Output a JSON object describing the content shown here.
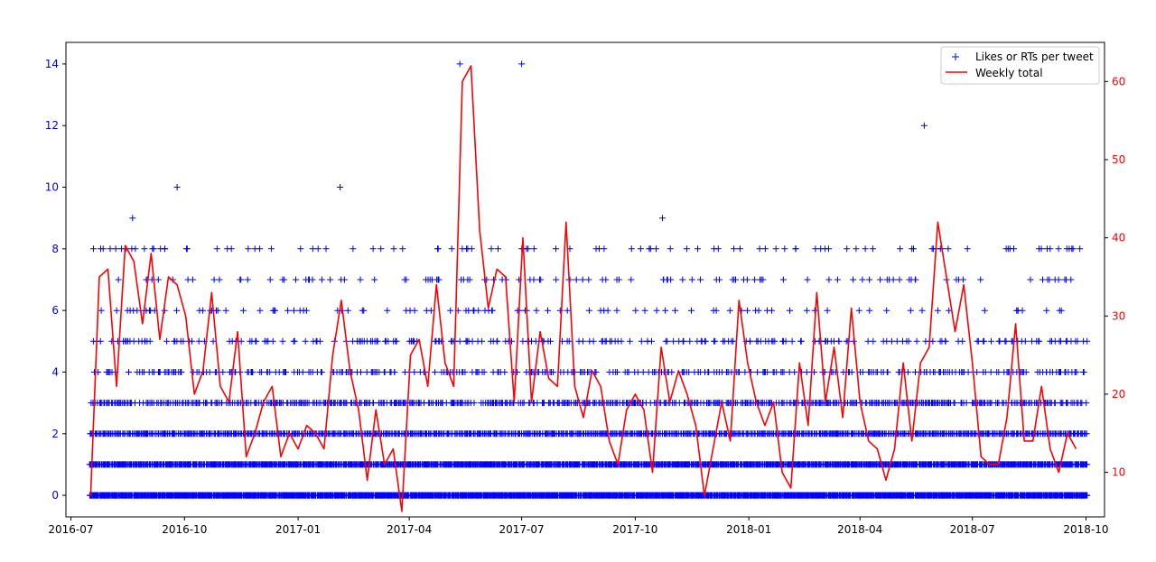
{
  "chart_data": {
    "type": "scatter",
    "x_axis": {
      "type": "date",
      "range": [
        "2016-06-27",
        "2018-10-16"
      ],
      "ticks": [
        "2016-07",
        "2016-10",
        "2017-01",
        "2017-04",
        "2017-07",
        "2017-10",
        "2018-01",
        "2018-04",
        "2018-07",
        "2018-10"
      ]
    },
    "y_left": {
      "range": [
        -0.7,
        14.7
      ],
      "ticks": [
        0,
        2,
        4,
        6,
        8,
        10,
        12,
        14
      ],
      "color": "#0000ff"
    },
    "y_right": {
      "range": [
        4.3,
        65
      ],
      "ticks": [
        10,
        20,
        30,
        40,
        50,
        60
      ],
      "color": "#ff0000"
    },
    "legend": {
      "position": "top-right",
      "items": [
        {
          "label": "Likes or RTs per tweet",
          "marker": "plus",
          "color": "#0000ff"
        },
        {
          "label": "Weekly total",
          "marker": "line",
          "color": "#ff0000"
        }
      ]
    },
    "series": [
      {
        "name": "Likes or RTs per tweet",
        "kind": "scatter",
        "color": "#0000ff",
        "range": [
          "2016-07-16",
          "2018-10-01"
        ],
        "level_freq": {
          "0": 24,
          "1": 16,
          "2": 9,
          "3": 6,
          "4": 3,
          "5": 2,
          "6": 1,
          "7": 1,
          "8": 1
        },
        "points": [
          [
            "2016-07-20",
            4
          ],
          [
            "2016-07-22",
            5
          ],
          [
            "2016-07-25",
            5
          ],
          [
            "2016-08-11",
            8
          ],
          [
            "2016-08-15",
            5
          ],
          [
            "2016-08-18",
            6
          ],
          [
            "2016-08-20",
            9
          ],
          [
            "2016-08-25",
            5
          ],
          [
            "2016-09-05",
            4
          ],
          [
            "2016-09-06",
            8
          ],
          [
            "2016-09-15",
            8
          ],
          [
            "2016-09-22",
            4
          ],
          [
            "2016-09-25",
            10
          ],
          [
            "2016-09-28",
            4
          ],
          [
            "2016-09-30",
            5
          ],
          [
            "2016-10-07",
            5
          ],
          [
            "2016-10-16",
            4
          ],
          [
            "2016-10-23",
            6
          ],
          [
            "2016-10-25",
            7
          ],
          [
            "2016-11-08",
            8
          ],
          [
            "2016-11-11",
            4
          ],
          [
            "2016-12-05",
            5
          ],
          [
            "2016-12-20",
            4
          ],
          [
            "2017-01-02",
            4
          ],
          [
            "2017-01-30",
            4
          ],
          [
            "2017-02-02",
            6
          ],
          [
            "2017-02-04",
            10
          ],
          [
            "2017-02-06",
            4
          ],
          [
            "2017-03-20",
            4
          ],
          [
            "2017-04-01",
            4
          ],
          [
            "2017-04-03",
            5
          ],
          [
            "2017-04-05",
            5
          ],
          [
            "2017-04-15",
            6
          ],
          [
            "2017-04-22",
            5
          ],
          [
            "2017-04-25",
            7
          ],
          [
            "2017-05-01",
            4
          ],
          [
            "2017-05-05",
            5
          ],
          [
            "2017-05-08",
            5
          ],
          [
            "2017-05-12",
            14
          ],
          [
            "2017-05-13",
            7
          ],
          [
            "2017-05-14",
            8
          ],
          [
            "2017-05-15",
            7
          ],
          [
            "2017-05-17",
            6
          ],
          [
            "2017-05-18",
            5
          ],
          [
            "2017-05-19",
            6
          ],
          [
            "2017-05-20",
            7
          ],
          [
            "2017-05-22",
            4
          ],
          [
            "2017-05-25",
            4
          ],
          [
            "2017-05-27",
            6
          ],
          [
            "2017-06-06",
            5
          ],
          [
            "2017-06-14",
            4
          ],
          [
            "2017-06-18",
            5
          ],
          [
            "2017-07-01",
            14
          ],
          [
            "2017-07-02",
            5
          ],
          [
            "2017-07-05",
            4
          ],
          [
            "2017-07-13",
            6
          ],
          [
            "2017-07-18",
            5
          ],
          [
            "2017-07-21",
            4
          ],
          [
            "2017-08-04",
            4
          ],
          [
            "2017-08-07",
            6
          ],
          [
            "2017-08-12",
            4
          ],
          [
            "2017-08-13",
            4
          ],
          [
            "2017-08-25",
            5
          ],
          [
            "2017-09-28",
            8
          ],
          [
            "2017-10-11",
            5
          ],
          [
            "2017-10-23",
            9
          ],
          [
            "2017-10-28",
            4
          ],
          [
            "2017-12-18",
            5
          ],
          [
            "2017-12-26",
            6
          ],
          [
            "2018-01-02",
            4
          ],
          [
            "2018-01-09",
            6
          ],
          [
            "2018-01-14",
            4
          ],
          [
            "2018-01-16",
            4
          ],
          [
            "2018-02-12",
            5
          ],
          [
            "2018-02-27",
            5
          ],
          [
            "2018-03-21",
            5
          ],
          [
            "2018-05-01",
            5
          ],
          [
            "2018-05-03",
            7
          ],
          [
            "2018-05-23",
            12
          ],
          [
            "2018-06-04",
            4
          ],
          [
            "2018-06-05",
            5
          ],
          [
            "2018-06-09",
            5
          ],
          [
            "2018-06-12",
            6
          ],
          [
            "2018-06-20",
            7
          ],
          [
            "2018-06-23",
            5
          ],
          [
            "2018-07-29",
            4
          ],
          [
            "2018-08-03",
            4
          ],
          [
            "2018-08-27",
            4
          ],
          [
            "2018-09-04",
            4
          ],
          [
            "2018-09-10",
            4
          ],
          [
            "2018-09-22",
            4
          ]
        ]
      },
      {
        "name": "Weekly total",
        "kind": "line",
        "color": "#ff0000",
        "start": "2016-07-17",
        "interval_days": 7,
        "values": [
          7,
          35,
          36,
          21,
          39,
          37,
          29,
          38,
          27,
          35,
          34,
          30,
          20,
          23,
          33,
          21,
          19,
          28,
          12,
          15,
          19,
          21,
          12,
          15,
          13,
          16,
          15,
          13,
          25,
          32,
          23,
          18,
          9,
          18,
          11,
          13,
          5,
          25,
          27,
          21,
          34,
          24,
          21,
          60,
          62,
          41,
          31,
          36,
          35,
          19,
          40,
          19,
          28,
          22,
          21,
          42,
          21,
          17,
          23,
          21,
          14,
          11,
          18,
          20,
          18,
          10,
          26,
          19,
          23,
          20,
          16,
          7,
          13,
          19,
          14,
          32,
          24,
          19,
          16,
          19,
          10,
          8,
          24,
          16,
          33,
          19,
          26,
          17,
          31,
          19,
          14,
          13,
          9,
          13,
          24,
          14,
          24,
          26,
          42,
          35,
          28,
          34,
          24,
          12,
          11,
          11,
          17,
          29,
          14,
          14,
          21,
          13,
          10,
          15,
          13
        ]
      }
    ]
  }
}
